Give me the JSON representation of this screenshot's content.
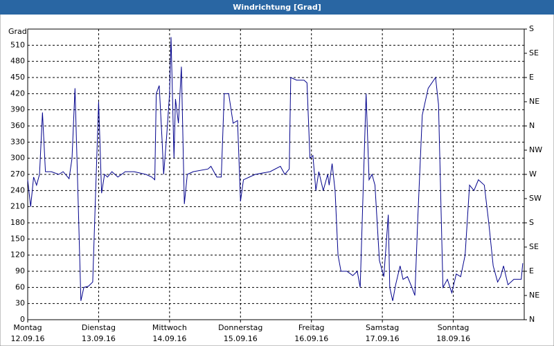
{
  "chart_data": {
    "type": "line",
    "title": "Windrichtung [Grad]",
    "y_label": "Grad",
    "xlim": [
      0,
      168
    ],
    "ylim": [
      0,
      540
    ],
    "y2lim": [
      0,
      540
    ],
    "xticks": [
      {
        "value": 0,
        "label": "Montag"
      },
      {
        "value": 24,
        "label": "Dienstag"
      },
      {
        "value": 48,
        "label": "Mittwoch"
      },
      {
        "value": 72,
        "label": "Donnerstag"
      },
      {
        "value": 96,
        "label": "Freitag"
      },
      {
        "value": 120,
        "label": "Samstag"
      },
      {
        "value": 144,
        "label": "Sonntag"
      }
    ],
    "xtick_dates": [
      "12.09.16",
      "13.09.16",
      "14.09.16",
      "15.09.16",
      "16.09.16",
      "17.09.16",
      "18.09.16"
    ],
    "yticks": [
      0,
      30,
      60,
      90,
      120,
      150,
      180,
      210,
      240,
      270,
      300,
      330,
      360,
      390,
      420,
      450,
      480,
      510
    ],
    "y2ticks": [
      {
        "value": 0,
        "label": "N"
      },
      {
        "value": 45,
        "label": "NE"
      },
      {
        "value": 90,
        "label": "E"
      },
      {
        "value": 135,
        "label": "SE"
      },
      {
        "value": 180,
        "label": "S"
      },
      {
        "value": 225,
        "label": "SW"
      },
      {
        "value": 270,
        "label": "W"
      },
      {
        "value": 315,
        "label": "NW"
      },
      {
        "value": 360,
        "label": "N"
      },
      {
        "value": 405,
        "label": "NE"
      },
      {
        "value": 450,
        "label": "E"
      },
      {
        "value": 495,
        "label": "SE"
      },
      {
        "value": 540,
        "label": "S"
      }
    ],
    "grid": true,
    "series": [
      {
        "color": "#00008b",
        "x": [
          0,
          1,
          2,
          3,
          4,
          5,
          6,
          8,
          10.5,
          12,
          14,
          15,
          16,
          17,
          18,
          19,
          20.5,
          22,
          23,
          24,
          25,
          26,
          27,
          28.5,
          30.5,
          33,
          36,
          40,
          42,
          43,
          43.5,
          44.5,
          45.5,
          46,
          47,
          48,
          48.5,
          49.5,
          50,
          51,
          52,
          53,
          54,
          56,
          61,
          62,
          64,
          65.5,
          66.5,
          68,
          69.5,
          71,
          72,
          73,
          75,
          77,
          82,
          85.5,
          87,
          88.5,
          89,
          91,
          93.5,
          94.5,
          95.5,
          96.5,
          97.5,
          98.5,
          100,
          101.5,
          102,
          103,
          104,
          105,
          106,
          108,
          110,
          111.5,
          112.5,
          113.5,
          114.5,
          115.5,
          116.5,
          117.5,
          119,
          120.5,
          122,
          122.5,
          123.5,
          124.5,
          126,
          127,
          128.5,
          130,
          131,
          132,
          133.5,
          135.5,
          138,
          139,
          140.5,
          142,
          143.5,
          145,
          146.5,
          148,
          149.5,
          151,
          152.5,
          154.5,
          156,
          157.5,
          159,
          160,
          161,
          162.5,
          164.5,
          167,
          167.5
        ],
        "values": [
          260,
          210,
          265,
          250,
          270,
          385,
          275,
          275,
          270,
          275,
          262,
          300,
          430,
          235,
          35,
          60,
          62,
          70,
          240,
          405,
          235,
          270,
          265,
          275,
          265,
          275,
          275,
          270,
          265,
          260,
          420,
          435,
          330,
          270,
          340,
          420,
          525,
          300,
          410,
          365,
          470,
          215,
          270,
          275,
          280,
          285,
          265,
          265,
          420,
          420,
          365,
          370,
          220,
          260,
          265,
          270,
          275,
          285,
          270,
          280,
          450,
          445,
          445,
          440,
          300,
          305,
          240,
          275,
          240,
          270,
          250,
          290,
          240,
          120,
          90,
          90,
          82,
          90,
          60,
          240,
          420,
          260,
          270,
          250,
          110,
          80,
          195,
          60,
          35,
          65,
          100,
          75,
          80,
          60,
          45,
          190,
          380,
          430,
          450,
          400,
          60,
          75,
          50,
          85,
          80,
          120,
          250,
          240,
          260,
          250,
          180,
          100,
          70,
          80,
          100,
          65,
          75,
          75,
          105
        ]
      }
    ]
  }
}
